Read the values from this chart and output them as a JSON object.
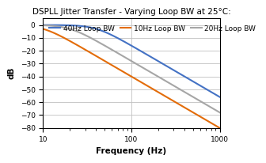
{
  "title": "DSPLL Jitter Transfer - Varying Loop BW at 25°C:",
  "xlabel": "Frequency (Hz)",
  "ylabel": "dB",
  "xlim": [
    10,
    1000
  ],
  "ylim": [
    -80,
    5
  ],
  "yticks": [
    0,
    -10,
    -20,
    -30,
    -40,
    -50,
    -60,
    -70,
    -80
  ],
  "curves": [
    {
      "bw": 40,
      "color": "#4472C4",
      "order": 2,
      "lw": 1.5,
      "label": "40Hz Loop BW"
    },
    {
      "bw": 10,
      "color": "#E36C09",
      "order": 2,
      "lw": 1.5,
      "label": "10Hz Loop BW"
    },
    {
      "bw": 20,
      "color": "#A6A6A6",
      "order": 2,
      "lw": 1.5,
      "label": "20Hz Loop BW"
    }
  ],
  "bg_color": "#FFFFFF",
  "grid_color": "#C0C0C0",
  "title_fontsize": 7.5,
  "axis_fontsize": 7.5,
  "tick_fontsize": 6.5,
  "legend_fontsize": 6.5
}
